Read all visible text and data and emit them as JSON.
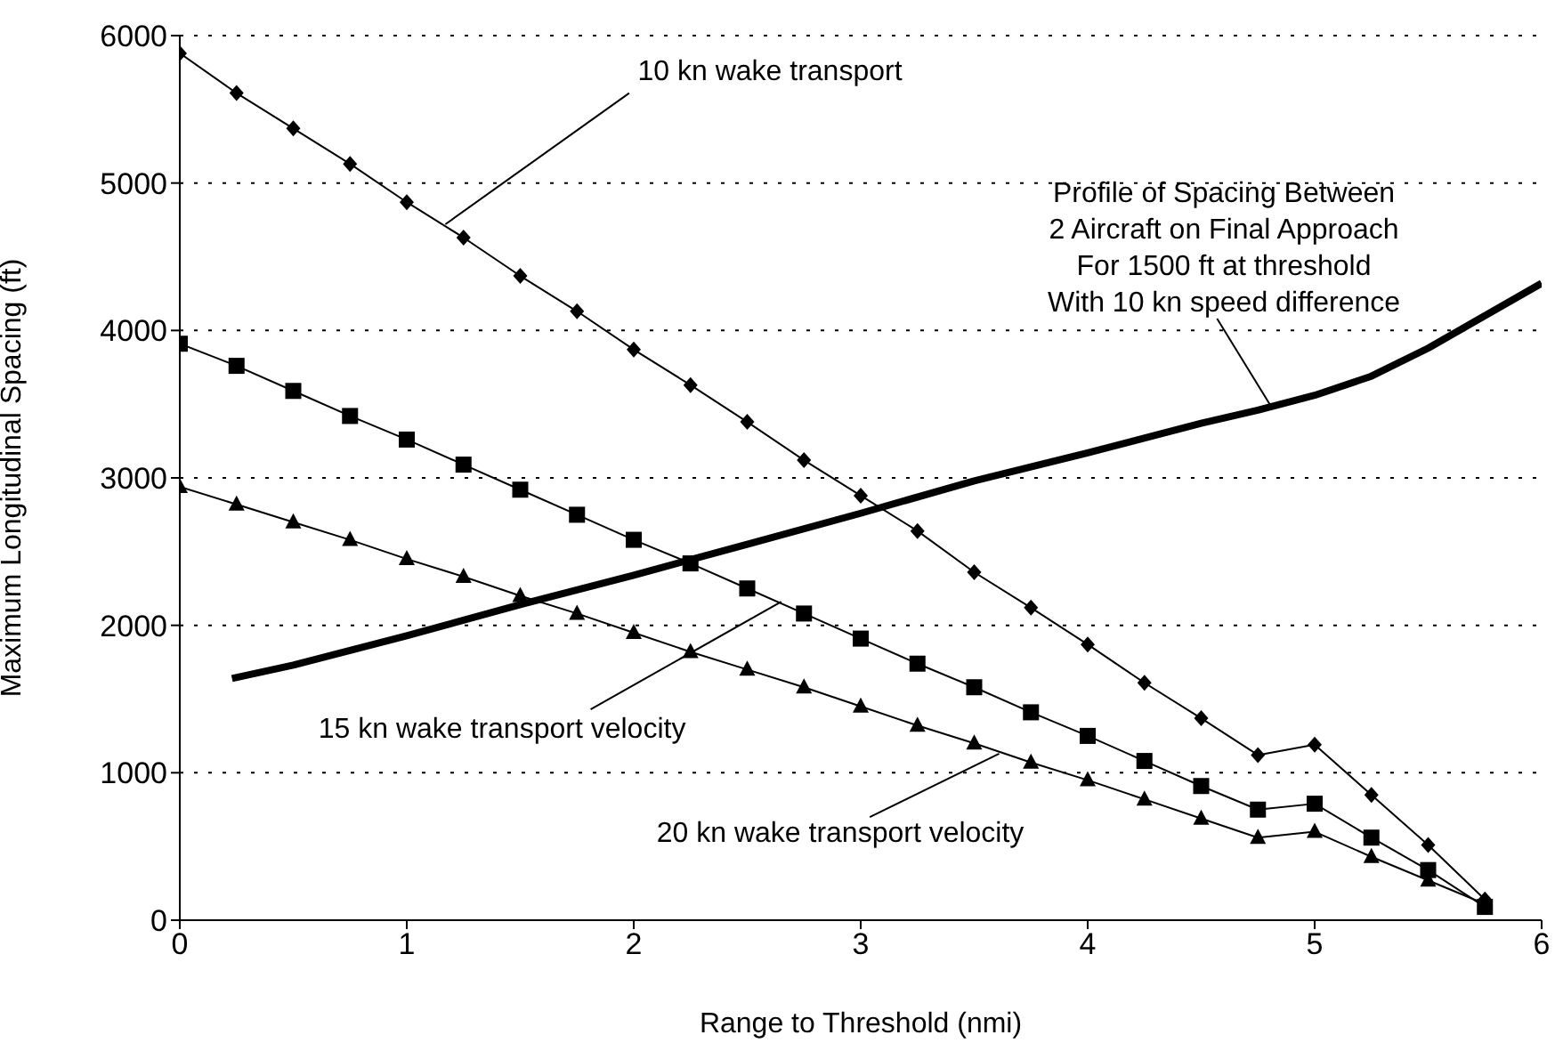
{
  "chart_data": {
    "type": "line",
    "xlabel": "Range to Threshold (nmi)",
    "ylabel": "Maximum Longitudinal Spacing (ft)",
    "xlim": [
      0,
      6
    ],
    "xticks": [
      0,
      1,
      2,
      3,
      4,
      5,
      6
    ],
    "ylim": [
      0,
      6000
    ],
    "yticks": [
      0,
      1000,
      2000,
      3000,
      4000,
      5000,
      6000
    ],
    "grid": "y",
    "legend": false,
    "series": [
      {
        "color": "#000000",
        "marker": "diamond",
        "x": [
          0,
          0.25,
          0.5,
          0.75,
          1,
          1.25,
          1.5,
          1.75,
          2,
          2.25,
          2.5,
          2.75,
          3,
          3.25,
          3.5,
          3.75,
          4,
          4.25,
          4.5,
          4.75,
          5,
          5.25,
          5.5,
          5.75
        ],
        "values": [
          5880,
          5610,
          5370,
          5130,
          4870,
          4630,
          4370,
          4130,
          3870,
          3630,
          3380,
          3120,
          2880,
          2640,
          2360,
          2120,
          1870,
          1610,
          1370,
          1120,
          1190,
          850,
          510,
          140
        ]
      },
      {
        "color": "#000000",
        "marker": "square",
        "x": [
          0,
          0.25,
          0.5,
          0.75,
          1,
          1.25,
          1.5,
          1.75,
          2,
          2.25,
          2.5,
          2.75,
          3,
          3.25,
          3.5,
          3.75,
          4,
          4.25,
          4.5,
          4.75,
          5,
          5.25,
          5.5,
          5.75
        ],
        "values": [
          3910,
          3760,
          3590,
          3420,
          3260,
          3090,
          2920,
          2750,
          2580,
          2420,
          2250,
          2080,
          1910,
          1740,
          1580,
          1410,
          1250,
          1080,
          910,
          750,
          790,
          560,
          340,
          90
        ]
      },
      {
        "color": "#000000",
        "marker": "triangle",
        "x": [
          0,
          0.25,
          0.5,
          0.75,
          1,
          1.25,
          1.5,
          1.75,
          2,
          2.25,
          2.5,
          2.75,
          3,
          3.25,
          3.5,
          3.75,
          4,
          4.25,
          4.5,
          4.75,
          5,
          5.25,
          5.5,
          5.75
        ],
        "values": [
          2940,
          2820,
          2700,
          2580,
          2450,
          2330,
          2200,
          2080,
          1950,
          1820,
          1700,
          1580,
          1450,
          1320,
          1200,
          1070,
          950,
          820,
          690,
          560,
          600,
          430,
          270,
          110
        ]
      },
      {
        "color": "#000000",
        "marker": "none",
        "x": [
          0.23,
          0.5,
          1,
          1.5,
          2,
          2.5,
          3,
          3.5,
          4,
          4.5,
          4.75,
          5,
          5.25,
          5.5,
          5.75,
          6
        ],
        "values": [
          1640,
          1730,
          1930,
          2140,
          2340,
          2550,
          2760,
          2980,
          3170,
          3370,
          3460,
          3560,
          3690,
          3880,
          4100,
          4320
        ]
      }
    ],
    "annotations": [
      {
        "text": "10 kn wake transport",
        "x": 1.17,
        "y": 4720
      },
      {
        "text": "Profile of Spacing Between\n2 Aircraft on Final Approach\nFor 1500 ft at threshold\nWith 10 kn speed difference",
        "x": 4.81,
        "y": 3480
      },
      {
        "text": "15 kn wake transport velocity",
        "x": 2.65,
        "y": 2160
      },
      {
        "text": "20 kn wake transport velocity",
        "x": 3.61,
        "y": 1130
      }
    ]
  }
}
